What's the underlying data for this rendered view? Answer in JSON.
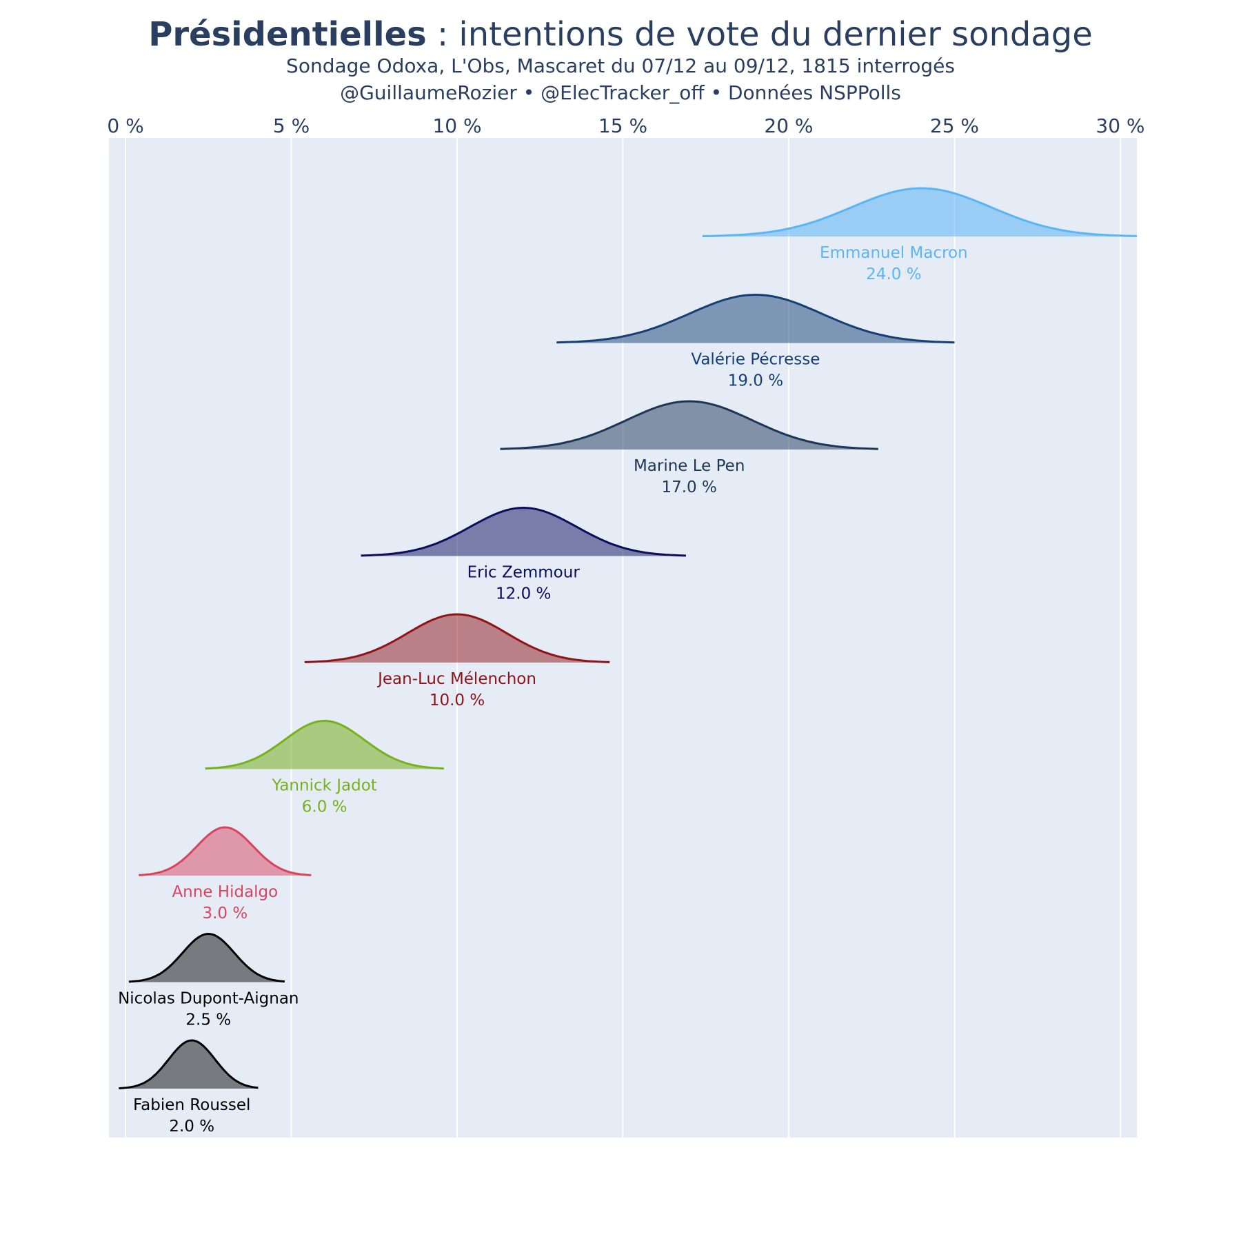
{
  "title_bold": "Présidentielles",
  "title_rest": " : intentions de vote du dernier sondage",
  "subtitle_line1": "Sondage Odoxa, L'Obs, Mascaret du 07/12 au 09/12, 1815 interrogés",
  "subtitle_line2": "@GuillaumeRozier • @ElecTracker_off • Données NSPPolls",
  "chart_data": {
    "type": "area",
    "subtype": "ridgeline-density",
    "xlim": [
      -0.5,
      30.5
    ],
    "x_ticks": [
      0,
      5,
      10,
      15,
      20,
      25,
      30
    ],
    "x_tick_labels": [
      "0 %",
      "5 %",
      "10 %",
      "15 %",
      "20 %",
      "25 %",
      "30 %"
    ],
    "x_axis_position": "top",
    "grid": true,
    "background": "#e5ecf6",
    "series": [
      {
        "name": "Emmanuel Macron",
        "value_label": "24.0 %",
        "mean": 24.0,
        "sd": 2.1,
        "range": [
          17.4,
          30.5
        ],
        "color": "#5bb5f5",
        "fill": "rgba(91,181,245,0.55)"
      },
      {
        "name": "Valérie Pécresse",
        "value_label": "19.0 %",
        "mean": 19.0,
        "sd": 2.0,
        "range": [
          13.0,
          25.0
        ],
        "color": "#153f76",
        "fill": "rgba(21,63,118,0.5)"
      },
      {
        "name": "Marine Le Pen",
        "value_label": "17.0 %",
        "mean": 17.0,
        "sd": 1.9,
        "range": [
          11.3,
          22.7
        ],
        "color": "#1d3557",
        "fill": "rgba(29,53,87,0.5)"
      },
      {
        "name": "Eric Zemmour",
        "value_label": "12.0 %",
        "mean": 12.0,
        "sd": 1.6,
        "range": [
          7.1,
          16.9
        ],
        "color": "#0c0d5e",
        "fill": "rgba(12,13,94,0.5)"
      },
      {
        "name": "Jean-Luc Mélenchon",
        "value_label": "10.0 %",
        "mean": 10.0,
        "sd": 1.5,
        "range": [
          5.4,
          14.6
        ],
        "color": "#8f1418",
        "fill": "rgba(143,20,24,0.5)"
      },
      {
        "name": "Yannick Jadot",
        "value_label": "6.0 %",
        "mean": 6.0,
        "sd": 1.2,
        "range": [
          2.4,
          9.6
        ],
        "color": "#77b11d",
        "fill": "rgba(119,177,29,0.55)"
      },
      {
        "name": "Anne Hidalgo",
        "value_label": "3.0 %",
        "mean": 3.0,
        "sd": 0.85,
        "range": [
          0.4,
          5.6
        ],
        "color": "#d9435e",
        "fill": "rgba(217,67,94,0.5)"
      },
      {
        "name": "Nicolas Dupont-Aignan",
        "value_label": "2.5 %",
        "mean": 2.5,
        "sd": 0.78,
        "range": [
          0.1,
          4.8
        ],
        "color": "#000000",
        "fill": "rgba(30,30,30,0.55)"
      },
      {
        "name": "Fabien Roussel",
        "value_label": "2.0 %",
        "mean": 2.0,
        "sd": 0.7,
        "range": [
          -0.2,
          4.0
        ],
        "color": "#000000",
        "fill": "rgba(30,30,30,0.55)"
      }
    ]
  }
}
